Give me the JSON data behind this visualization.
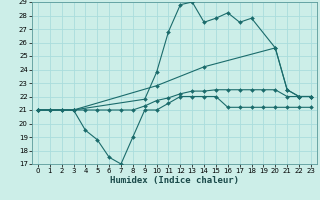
{
  "title": "",
  "xlabel": "Humidex (Indice chaleur)",
  "bg_color": "#cceee8",
  "grid_color": "#aadddd",
  "line_color": "#1a6b6b",
  "xlim": [
    -0.5,
    23.5
  ],
  "ylim": [
    17,
    29
  ],
  "xtick_labels": [
    "0",
    "1",
    "2",
    "3",
    "4",
    "5",
    "6",
    "7",
    "8",
    "9",
    "10",
    "11",
    "12",
    "13",
    "14",
    "15",
    "16",
    "17",
    "18",
    "19",
    "20",
    "21",
    "22",
    "23"
  ],
  "xtick_vals": [
    0,
    1,
    2,
    3,
    4,
    5,
    6,
    7,
    8,
    9,
    10,
    11,
    12,
    13,
    14,
    15,
    16,
    17,
    18,
    19,
    20,
    21,
    22,
    23
  ],
  "ytick_vals": [
    17,
    18,
    19,
    20,
    21,
    22,
    23,
    24,
    25,
    26,
    27,
    28,
    29
  ],
  "line1_x": [
    0,
    1,
    2,
    3,
    4,
    5,
    6,
    7,
    8,
    9,
    10,
    11,
    12,
    13,
    14,
    15,
    16,
    17,
    18,
    19,
    20,
    21,
    22,
    23
  ],
  "line1_y": [
    21,
    21,
    21,
    21,
    19.5,
    18.8,
    17.5,
    17,
    19,
    21,
    21,
    21.5,
    22,
    22,
    22,
    22,
    21.2,
    21.2,
    21.2,
    21.2,
    21.2,
    21.2,
    21.2,
    21.2
  ],
  "line2_x": [
    0,
    1,
    2,
    3,
    4,
    5,
    6,
    7,
    8,
    9,
    10,
    11,
    12,
    13,
    14,
    15,
    16,
    17,
    18,
    19,
    20,
    21,
    22,
    23
  ],
  "line2_y": [
    21,
    21,
    21,
    21,
    21,
    21,
    21,
    21,
    21,
    21.3,
    21.7,
    21.9,
    22.2,
    22.4,
    22.4,
    22.5,
    22.5,
    22.5,
    22.5,
    22.5,
    22.5,
    22,
    22,
    22
  ],
  "line3_x": [
    0,
    3,
    10,
    14,
    20,
    21,
    22,
    23
  ],
  "line3_y": [
    21,
    21,
    22.8,
    24.2,
    25.6,
    22.5,
    22,
    22
  ],
  "line4_x": [
    0,
    3,
    9,
    10,
    11,
    12,
    13,
    14,
    15,
    16,
    17,
    18,
    20,
    21,
    22,
    23
  ],
  "line4_y": [
    21,
    21,
    21.8,
    23.8,
    26.8,
    28.8,
    29,
    27.5,
    27.8,
    28.2,
    27.5,
    27.8,
    25.6,
    22.5,
    22,
    22
  ]
}
